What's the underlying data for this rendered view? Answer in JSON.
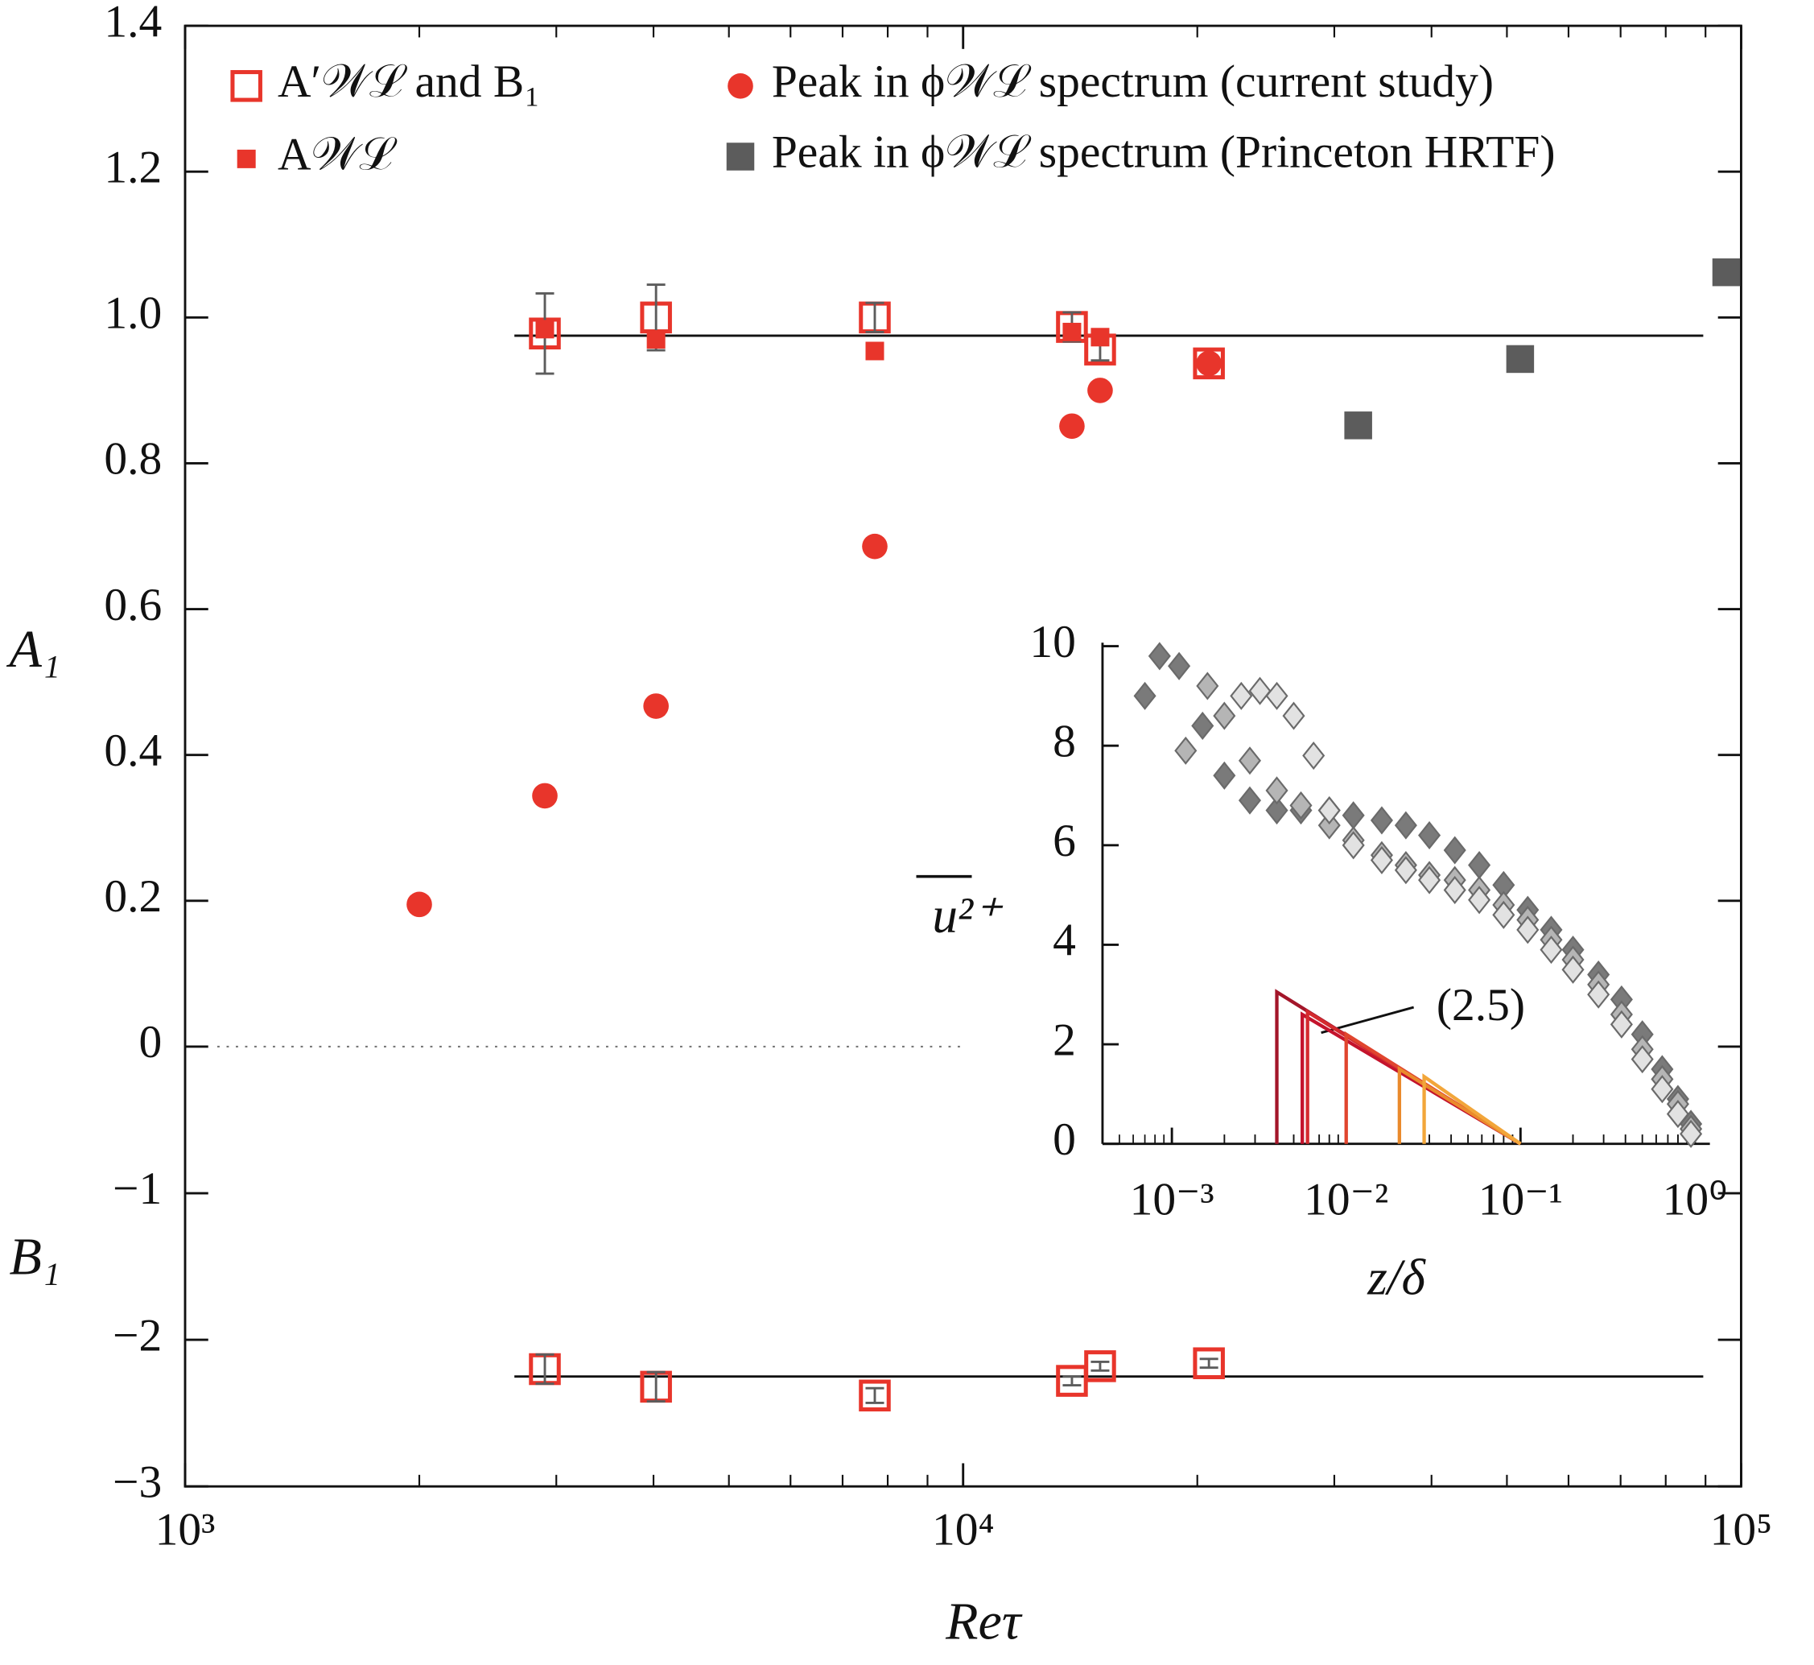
{
  "chart_data": [
    {
      "type": "scatter",
      "x_label": "Reτ",
      "y_label": "A₁",
      "y_label_2": "B₁",
      "xscale": "log",
      "xlim": [
        1000,
        100000
      ],
      "xticks": [
        {
          "value": 1000,
          "label": "10³"
        },
        {
          "value": 10000,
          "label": "10⁴"
        },
        {
          "value": 100000,
          "label": "10⁵"
        }
      ],
      "ylim": [
        -3,
        1.4
      ],
      "yticks": [
        {
          "value": -3,
          "label": "−3"
        },
        {
          "value": -2,
          "label": "−2"
        },
        {
          "value": -1,
          "label": "−1"
        },
        0,
        0.2,
        0.4,
        0.6,
        0.8,
        {
          "value": 1,
          "label": "1.0"
        },
        1.2,
        1.4
      ],
      "series": [
        {
          "name": "A′𝒲ℒ and B₁",
          "marker": "open-square",
          "color": "#e8352b",
          "error_color": "#5c5c5c",
          "x": [
            2900,
            4030,
            7700,
            13800,
            15000,
            20700,
            2900,
            4030,
            7700,
            13800,
            15000,
            20700
          ],
          "values": [
            0.978,
            1.0,
            1.0,
            0.987,
            0.956,
            0.937,
            -2.2,
            -2.32,
            -2.38,
            -2.28,
            -2.18,
            -2.16
          ],
          "errors": [
            0.055,
            0.045,
            0.02,
            0.02,
            0.015,
            0.01,
            0.1,
            0.1,
            0.05,
            0.03,
            0.03,
            0.03
          ]
        },
        {
          "name": "A𝒲ℒ",
          "marker": "square",
          "color": "#e8352b",
          "x": [
            2900,
            4030,
            7700,
            13800,
            15000
          ],
          "values": [
            0.984,
            0.97,
            0.954,
            0.98,
            0.973
          ]
        },
        {
          "name": "Peak in ϕ𝒲ℒ spectrum (current study)",
          "marker": "circle",
          "color": "#e8352b",
          "x": [
            2000,
            2900,
            4030,
            7700,
            13800,
            15000,
            20700
          ],
          "values": [
            0.195,
            0.344,
            0.467,
            0.686,
            0.851,
            0.9,
            0.937
          ]
        },
        {
          "name": "Peak in ϕ𝒲ℒ spectrum (Princeton HRTF)",
          "marker": "square",
          "color": "#5c5c5c",
          "x": [
            32200,
            52000,
            95700
          ],
          "values": [
            0.852,
            0.943,
            1.062
          ]
        }
      ],
      "reference_lines": [
        {
          "value": 0.975,
          "x": [
            2650,
            89400
          ],
          "style": "solid"
        },
        {
          "value": -2.25,
          "x": [
            2650,
            89400
          ],
          "style": "solid"
        },
        {
          "value": 0,
          "x": [
            1100,
            10000
          ],
          "style": "dotted"
        }
      ]
    },
    {
      "type": "scatter",
      "x_label": "z/δ",
      "y_label": "u²⁺",
      "xscale": "log",
      "xlim": [
        0.0004,
        1.22
      ],
      "xticks": [
        {
          "value": 0.001,
          "label": "10⁻³"
        },
        {
          "value": 0.01,
          "label": "10⁻²"
        },
        {
          "value": 0.1,
          "label": "10⁻¹"
        },
        {
          "value": 1,
          "label": "10⁰"
        }
      ],
      "ylim": [
        0,
        10
      ],
      "yticks": [
        0,
        2,
        4,
        6,
        8,
        10
      ],
      "annotation": "(2.5)",
      "series": [
        {
          "marker": "diamond",
          "color": "#7a7a7a",
          "x": [
            0.0007,
            0.00085,
            0.0011,
            0.0015,
            0.002,
            0.0028,
            0.004,
            0.0055,
            0.008,
            0.011,
            0.016,
            0.022,
            0.03,
            0.042,
            0.058,
            0.08,
            0.11,
            0.15,
            0.2,
            0.28,
            0.38,
            0.5,
            0.65,
            0.8,
            0.95
          ],
          "values": [
            9.0,
            9.8,
            9.6,
            8.4,
            7.4,
            6.9,
            6.7,
            6.7,
            6.7,
            6.6,
            6.5,
            6.4,
            6.2,
            5.9,
            5.6,
            5.2,
            4.7,
            4.3,
            3.9,
            3.4,
            2.9,
            2.2,
            1.5,
            0.9,
            0.4
          ]
        },
        {
          "marker": "diamond",
          "color": "#b5b5b5",
          "x": [
            0.0012,
            0.0016,
            0.002,
            0.0028,
            0.004,
            0.0055,
            0.008,
            0.011,
            0.016,
            0.022,
            0.03,
            0.042,
            0.058,
            0.08,
            0.11,
            0.15,
            0.2,
            0.28,
            0.38,
            0.5,
            0.65,
            0.8,
            0.95
          ],
          "values": [
            7.9,
            9.2,
            8.6,
            7.7,
            7.1,
            6.8,
            6.4,
            6.1,
            5.8,
            5.6,
            5.4,
            5.3,
            5.1,
            4.8,
            4.5,
            4.1,
            3.7,
            3.2,
            2.6,
            1.9,
            1.3,
            0.8,
            0.3
          ]
        },
        {
          "marker": "diamond",
          "color": "#e2e2e2",
          "x": [
            0.0025,
            0.0032,
            0.004,
            0.005,
            0.0065,
            0.008,
            0.011,
            0.016,
            0.022,
            0.03,
            0.042,
            0.058,
            0.08,
            0.11,
            0.15,
            0.2,
            0.28,
            0.38,
            0.5,
            0.65,
            0.8,
            0.95
          ],
          "values": [
            9.0,
            9.1,
            9.0,
            8.6,
            7.8,
            6.7,
            6.0,
            5.7,
            5.5,
            5.3,
            5.1,
            4.9,
            4.6,
            4.3,
            3.9,
            3.5,
            3.0,
            2.4,
            1.7,
            1.1,
            0.6,
            0.2
          ]
        },
        {
          "marker": "line",
          "color": "#a3162a",
          "x": [
            0.004,
            0.004,
            0.1
          ],
          "values": [
            0,
            3.05,
            0
          ]
        },
        {
          "marker": "line",
          "color": "#c4132c",
          "x": [
            0.0056,
            0.0056,
            0.1
          ],
          "values": [
            0,
            2.6,
            0
          ]
        },
        {
          "marker": "line",
          "color": "#d42a2e",
          "x": [
            0.006,
            0.006,
            0.1
          ],
          "values": [
            0,
            2.65,
            0
          ]
        },
        {
          "marker": "line",
          "color": "#e0452e",
          "x": [
            0.01,
            0.01,
            0.1
          ],
          "values": [
            0,
            2.2,
            0
          ]
        },
        {
          "marker": "line",
          "color": "#ea8a2c",
          "x": [
            0.0202,
            0.0202,
            0.1
          ],
          "values": [
            0,
            1.5,
            0
          ]
        },
        {
          "marker": "line",
          "color": "#f2a63a",
          "x": [
            0.028,
            0.028,
            0.1
          ],
          "values": [
            0,
            1.35,
            0
          ]
        }
      ]
    }
  ]
}
